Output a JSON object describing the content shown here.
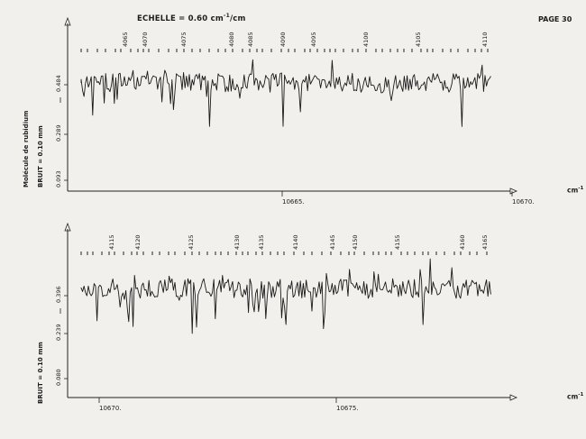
{
  "header": {
    "scale_label": "ECHELLE = 0.60 cm",
    "scale_sup": "-1",
    "scale_suffix": "/cm",
    "page_label": "PAGE 30"
  },
  "chart_data": [
    {
      "type": "line",
      "title": "",
      "ylabels": [
        "Molécule de rubidium",
        "BRUIT = 0.10 mm"
      ],
      "unit": "cm",
      "unit_sup": "-1",
      "y_ticks": [
        "0.484",
        "0.289",
        "0.093"
      ],
      "x_ticks": [
        "10665.",
        "10670."
      ],
      "line_ids": [
        "4065",
        "4070",
        "4075",
        "4080",
        "4085",
        "4090",
        "4095",
        "4100",
        "4105",
        "4110"
      ]
    },
    {
      "type": "line",
      "title": "",
      "ylabels": [
        "BRUIT = 0.10 mm"
      ],
      "unit": "cm",
      "unit_sup": "-1",
      "y_ticks": [
        "0.396",
        "0.239",
        "0.080"
      ],
      "x_ticks": [
        "10670.",
        "10675."
      ],
      "line_ids": [
        "4115",
        "4120",
        "4125",
        "4130",
        "4135",
        "4140",
        "4145",
        "4150",
        "4155",
        "4160",
        "4165"
      ]
    }
  ]
}
